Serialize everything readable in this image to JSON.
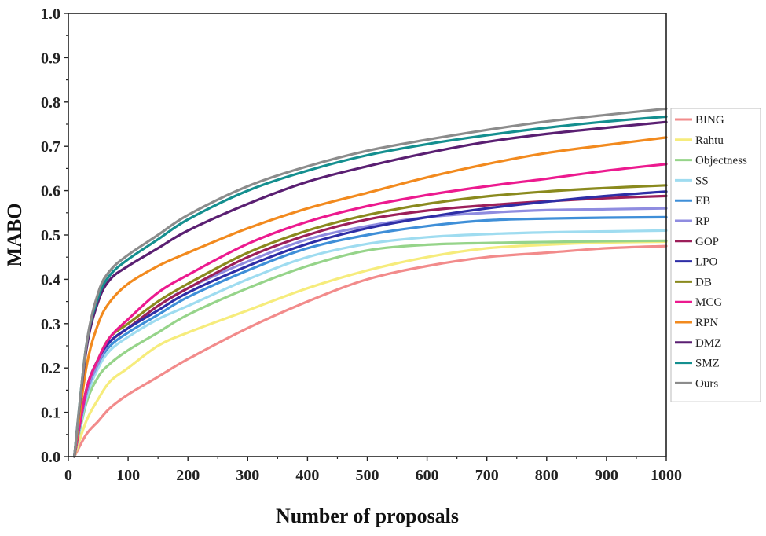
{
  "chart_data": {
    "type": "line",
    "title": "",
    "xlabel": "Number of proposals",
    "ylabel": "MABO",
    "xlim": [
      0,
      1000
    ],
    "ylim": [
      0.0,
      1.0
    ],
    "x_ticks": [
      "0",
      "100",
      "200",
      "300",
      "400",
      "500",
      "600",
      "700",
      "800",
      "900",
      "1000"
    ],
    "y_ticks": [
      "0.0",
      "0.1",
      "0.2",
      "0.3",
      "0.4",
      "0.5",
      "0.6",
      "0.7",
      "0.8",
      "0.9",
      "1.0"
    ],
    "grid": false,
    "legend_position": "right",
    "x": [
      10,
      30,
      50,
      70,
      100,
      150,
      200,
      300,
      400,
      500,
      600,
      700,
      800,
      900,
      1000
    ],
    "series": [
      {
        "name": "BING",
        "color": "#f28b8b",
        "values": [
          0.0,
          0.05,
          0.08,
          0.11,
          0.14,
          0.18,
          0.22,
          0.29,
          0.35,
          0.4,
          0.43,
          0.45,
          0.46,
          0.47,
          0.475
        ]
      },
      {
        "name": "Rahtu",
        "color": "#f6ec7c",
        "values": [
          0.0,
          0.08,
          0.13,
          0.17,
          0.2,
          0.25,
          0.28,
          0.33,
          0.38,
          0.42,
          0.45,
          0.47,
          0.478,
          0.483,
          0.485
        ]
      },
      {
        "name": "Objectness",
        "color": "#96d48a",
        "values": [
          0.0,
          0.12,
          0.18,
          0.21,
          0.24,
          0.28,
          0.32,
          0.38,
          0.43,
          0.465,
          0.478,
          0.482,
          0.484,
          0.486,
          0.487
        ]
      },
      {
        "name": "SS",
        "color": "#9fdcf0",
        "values": [
          0.0,
          0.13,
          0.2,
          0.24,
          0.27,
          0.31,
          0.34,
          0.4,
          0.45,
          0.48,
          0.495,
          0.502,
          0.506,
          0.508,
          0.51
        ]
      },
      {
        "name": "EB",
        "color": "#3f8fd8",
        "values": [
          0.0,
          0.14,
          0.21,
          0.25,
          0.28,
          0.32,
          0.36,
          0.42,
          0.47,
          0.5,
          0.52,
          0.533,
          0.537,
          0.539,
          0.54
        ]
      },
      {
        "name": "RP",
        "color": "#8f8ce0",
        "values": [
          0.0,
          0.14,
          0.21,
          0.26,
          0.29,
          0.34,
          0.38,
          0.44,
          0.49,
          0.52,
          0.54,
          0.55,
          0.556,
          0.558,
          0.56
        ]
      },
      {
        "name": "GOP",
        "color": "#9c1f5a",
        "values": [
          0.0,
          0.15,
          0.22,
          0.26,
          0.29,
          0.34,
          0.38,
          0.45,
          0.5,
          0.535,
          0.555,
          0.567,
          0.576,
          0.583,
          0.588
        ]
      },
      {
        "name": "LPO",
        "color": "#2e2ea6",
        "values": [
          0.0,
          0.15,
          0.22,
          0.26,
          0.29,
          0.33,
          0.37,
          0.43,
          0.48,
          0.515,
          0.54,
          0.56,
          0.575,
          0.588,
          0.598
        ]
      },
      {
        "name": "DB",
        "color": "#8a8a1e",
        "values": [
          0.0,
          0.15,
          0.22,
          0.27,
          0.3,
          0.35,
          0.39,
          0.46,
          0.51,
          0.545,
          0.57,
          0.587,
          0.598,
          0.606,
          0.612
        ]
      },
      {
        "name": "MCG",
        "color": "#ec1a8f",
        "values": [
          0.0,
          0.15,
          0.22,
          0.27,
          0.31,
          0.37,
          0.41,
          0.48,
          0.53,
          0.565,
          0.59,
          0.61,
          0.627,
          0.645,
          0.66
        ]
      },
      {
        "name": "RPN",
        "color": "#f28a1e",
        "values": [
          0.0,
          0.2,
          0.3,
          0.35,
          0.39,
          0.43,
          0.46,
          0.515,
          0.56,
          0.595,
          0.63,
          0.66,
          0.685,
          0.703,
          0.72
        ]
      },
      {
        "name": "DMZ",
        "color": "#5a1f72",
        "values": [
          0.0,
          0.24,
          0.35,
          0.4,
          0.43,
          0.47,
          0.51,
          0.57,
          0.62,
          0.655,
          0.685,
          0.71,
          0.728,
          0.742,
          0.755
        ]
      },
      {
        "name": "SMZ",
        "color": "#148f8f",
        "values": [
          0.0,
          0.25,
          0.36,
          0.41,
          0.445,
          0.49,
          0.535,
          0.6,
          0.645,
          0.68,
          0.705,
          0.725,
          0.742,
          0.756,
          0.767
        ]
      },
      {
        "name": "Ours",
        "color": "#8c8c8c",
        "values": [
          0.0,
          0.25,
          0.37,
          0.42,
          0.455,
          0.5,
          0.545,
          0.61,
          0.655,
          0.69,
          0.715,
          0.737,
          0.756,
          0.771,
          0.785
        ]
      }
    ]
  }
}
